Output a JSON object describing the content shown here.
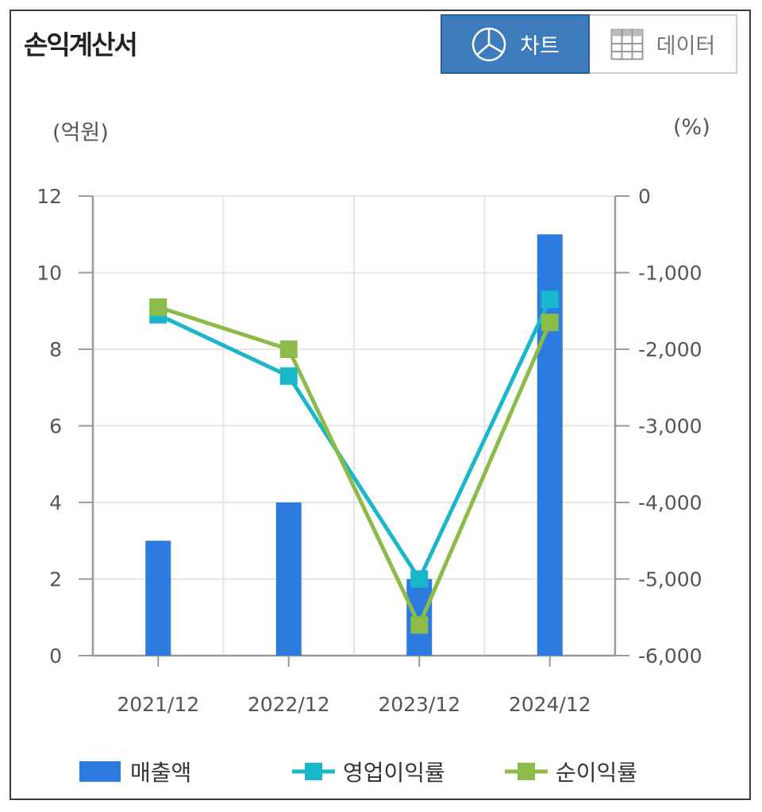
{
  "header": {
    "title": "손익계산서",
    "chart_label": "차트",
    "data_label": "데이터"
  },
  "units": {
    "left": "(억원)",
    "right": "(%)"
  },
  "colors": {
    "bar": "#2b7be0",
    "op_margin": "#1ab6c9",
    "net_margin": "#8dbb4a",
    "toggle_active": "#3e7bbd"
  },
  "chart_data": {
    "type": "bar",
    "categories": [
      "2021/12",
      "2022/12",
      "2023/12",
      "2024/12"
    ],
    "series": [
      {
        "name": "매출액",
        "type": "bar",
        "axis": "left",
        "values": [
          3,
          4,
          2,
          11
        ]
      },
      {
        "name": "영업이익률",
        "type": "line",
        "axis": "right",
        "values": [
          -1550,
          -2350,
          -5000,
          -1350
        ]
      },
      {
        "name": "순이익률",
        "type": "line",
        "axis": "right",
        "values": [
          -1450,
          -2000,
          -5600,
          -1650
        ]
      }
    ],
    "y_left": {
      "range": [
        0,
        12
      ],
      "ticks": [
        "0",
        "2",
        "4",
        "6",
        "8",
        "10",
        "12"
      ]
    },
    "y_right": {
      "range": [
        -6000,
        0
      ],
      "ticks": [
        "-6,000",
        "-5,000",
        "-4,000",
        "-3,000",
        "-2,000",
        "-1,000",
        "0"
      ]
    },
    "grid": true,
    "legend_position": "bottom"
  }
}
